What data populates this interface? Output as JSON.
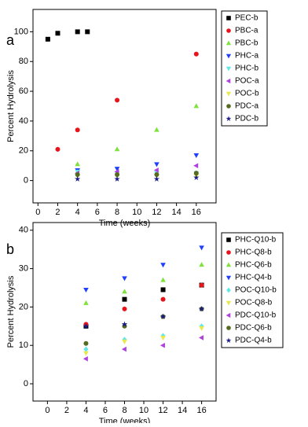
{
  "chart_data": [
    {
      "type": "scatter",
      "panel_label": "a",
      "xlabel": "Time (weeks)",
      "ylabel": "Percent Hydrolysis",
      "xlim": [
        -0.5,
        18
      ],
      "xticks": [
        0,
        2,
        4,
        6,
        8,
        10,
        12,
        14,
        16
      ],
      "ylim": [
        -15,
        115
      ],
      "yticks": [
        0,
        20,
        40,
        60,
        80,
        100
      ],
      "series": [
        {
          "name": "PEC-b",
          "color": "#000000",
          "marker": "square",
          "x": [
            1,
            2,
            4,
            5
          ],
          "values": [
            95,
            99,
            100,
            100
          ]
        },
        {
          "name": "PBC-a",
          "color": "#e8141b",
          "marker": "circle",
          "x": [
            2,
            4,
            8,
            16
          ],
          "values": [
            21,
            34,
            54,
            85
          ]
        },
        {
          "name": "PBC-b",
          "color": "#7ee23b",
          "marker": "triangle-up",
          "x": [
            4,
            8,
            12,
            16
          ],
          "values": [
            11,
            21,
            34,
            50
          ]
        },
        {
          "name": "PHC-a",
          "color": "#1f3fff",
          "marker": "triangle-down",
          "x": [
            4,
            8,
            12,
            16
          ],
          "values": [
            7,
            8,
            11,
            17
          ]
        },
        {
          "name": "PHC-b",
          "color": "#5ee8e8",
          "marker": "triangle-down",
          "x": [
            4,
            8,
            12,
            16
          ],
          "values": [
            6,
            5,
            5,
            5
          ]
        },
        {
          "name": "POC-a",
          "color": "#b040e0",
          "marker": "triangle-left",
          "x": [
            4,
            8,
            12,
            16
          ],
          "values": [
            5,
            6,
            7,
            10
          ]
        },
        {
          "name": "POC-b",
          "color": "#e8e84a",
          "marker": "triangle-down",
          "x": [
            4,
            8,
            12,
            16
          ],
          "values": [
            3,
            3,
            3,
            3
          ]
        },
        {
          "name": "PDC-a",
          "color": "#556b1f",
          "marker": "circle",
          "x": [
            4,
            8,
            12,
            16
          ],
          "values": [
            4,
            4,
            4,
            5
          ]
        },
        {
          "name": "PDC-b",
          "color": "#1a1a8a",
          "marker": "star",
          "x": [
            4,
            8,
            12,
            16
          ],
          "values": [
            1,
            1,
            1,
            2
          ]
        }
      ]
    },
    {
      "type": "scatter",
      "panel_label": "b",
      "xlabel": "Time (weeks)",
      "ylabel": "Percent Hydrolysis",
      "xlim": [
        -1.5,
        17.5
      ],
      "xticks": [
        0,
        2,
        4,
        6,
        8,
        10,
        12,
        14,
        16
      ],
      "ylim": [
        -4.5,
        42
      ],
      "yticks": [
        0,
        10,
        20,
        30,
        40
      ],
      "series": [
        {
          "name": "PHC-Q10-b",
          "color": "#000000",
          "marker": "square",
          "x": [
            4,
            8,
            12,
            16
          ],
          "values": [
            15,
            22,
            24.5,
            25.7
          ]
        },
        {
          "name": "PHC-Q8-b",
          "color": "#e8141b",
          "marker": "circle",
          "x": [
            4,
            8,
            12,
            16
          ],
          "values": [
            15.5,
            19.5,
            22,
            25.7
          ]
        },
        {
          "name": "PHC-Q6-b",
          "color": "#7ee23b",
          "marker": "triangle-up",
          "x": [
            4,
            8,
            12,
            16
          ],
          "values": [
            21,
            24,
            27,
            31
          ]
        },
        {
          "name": "PHC-Q4-b",
          "color": "#1f3fff",
          "marker": "triangle-down",
          "x": [
            4,
            8,
            12,
            16
          ],
          "values": [
            24.5,
            27.5,
            31,
            35.5
          ]
        },
        {
          "name": "POC-Q10-b",
          "color": "#5ee8e8",
          "marker": "diamond",
          "x": [
            4,
            8,
            12,
            16
          ],
          "values": [
            9,
            11.5,
            12.5,
            15
          ]
        },
        {
          "name": "POC-Q8-b",
          "color": "#e8e84a",
          "marker": "triangle-down",
          "x": [
            4,
            8,
            12,
            16
          ],
          "values": [
            8,
            11,
            12,
            14.5
          ]
        },
        {
          "name": "PDC-Q10-b",
          "color": "#b040e0",
          "marker": "triangle-left",
          "x": [
            4,
            8,
            12,
            16
          ],
          "values": [
            6.5,
            9,
            10,
            12
          ]
        },
        {
          "name": "PDC-Q6-b",
          "color": "#556b1f",
          "marker": "circle",
          "x": [
            4,
            8,
            12,
            16
          ],
          "values": [
            10.5,
            15,
            17.5,
            19.5
          ]
        },
        {
          "name": "PDC-Q4-b",
          "color": "#1a1a8a",
          "marker": "star",
          "x": [
            4,
            8,
            12,
            16
          ],
          "values": [
            15,
            15.5,
            17.5,
            19.5
          ]
        }
      ]
    }
  ]
}
